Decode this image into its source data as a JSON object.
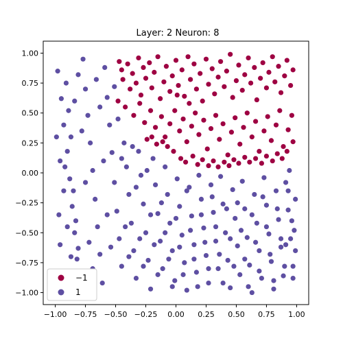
{
  "chart_data": {
    "type": "scatter",
    "title": "Layer: 2 Neuron: 8",
    "xlabel": "",
    "ylabel": "",
    "xlim": [
      -1.1,
      1.1
    ],
    "ylim": [
      -1.1,
      1.1
    ],
    "xticks": [
      "-1.00",
      "-0.75",
      "-0.50",
      "-0.25",
      "0.00",
      "0.25",
      "0.50",
      "0.75",
      "1.00"
    ],
    "yticks": [
      "-1.00",
      "-0.75",
      "-0.50",
      "-0.25",
      "0.00",
      "0.25",
      "0.50",
      "0.75",
      "1.00"
    ],
    "xtick_values": [
      -1.0,
      -0.75,
      -0.5,
      -0.25,
      0.0,
      0.25,
      0.5,
      0.75,
      1.0
    ],
    "ytick_values": [
      -1.0,
      -0.75,
      -0.5,
      -0.25,
      0.0,
      0.25,
      0.5,
      0.75,
      1.0
    ],
    "grid": false,
    "legend_position": "lower-left",
    "series": [
      {
        "name": "−1",
        "color": "#9e0142",
        "points": [
          [
            -0.47,
            0.93
          ],
          [
            -0.45,
            0.86
          ],
          [
            -0.44,
            0.78
          ],
          [
            -0.4,
            0.91
          ],
          [
            -0.38,
            0.7
          ],
          [
            -0.36,
            0.83
          ],
          [
            -0.33,
            0.75
          ],
          [
            -0.31,
            0.96
          ],
          [
            -0.29,
            0.65
          ],
          [
            -0.27,
            0.88
          ],
          [
            -0.25,
            0.79
          ],
          [
            -0.22,
            0.92
          ],
          [
            -0.2,
            0.71
          ],
          [
            -0.18,
            0.84
          ],
          [
            -0.15,
            0.97
          ],
          [
            -0.13,
            0.62
          ],
          [
            -0.1,
            0.76
          ],
          [
            -0.08,
            0.89
          ],
          [
            -0.05,
            0.68
          ],
          [
            -0.03,
            0.81
          ],
          [
            0.0,
            0.94
          ],
          [
            0.02,
            0.73
          ],
          [
            0.05,
            0.86
          ],
          [
            0.07,
            0.64
          ],
          [
            0.1,
            0.97
          ],
          [
            0.12,
            0.78
          ],
          [
            0.15,
            0.91
          ],
          [
            0.17,
            0.7
          ],
          [
            0.2,
            0.83
          ],
          [
            0.22,
            0.6
          ],
          [
            0.25,
            0.95
          ],
          [
            0.27,
            0.74
          ],
          [
            0.3,
            0.87
          ],
          [
            0.32,
            0.66
          ],
          [
            0.35,
            0.8
          ],
          [
            0.37,
            0.93
          ],
          [
            0.4,
            0.72
          ],
          [
            0.42,
            0.85
          ],
          [
            0.45,
            0.99
          ],
          [
            0.47,
            0.63
          ],
          [
            0.5,
            0.77
          ],
          [
            0.52,
            0.9
          ],
          [
            0.55,
            0.69
          ],
          [
            0.57,
            0.82
          ],
          [
            0.6,
            0.96
          ],
          [
            0.62,
            0.75
          ],
          [
            0.65,
            0.88
          ],
          [
            0.67,
            0.61
          ],
          [
            0.7,
            0.79
          ],
          [
            0.72,
            0.92
          ],
          [
            0.75,
            0.71
          ],
          [
            0.77,
            0.84
          ],
          [
            0.8,
            0.97
          ],
          [
            0.82,
            0.76
          ],
          [
            0.85,
            0.89
          ],
          [
            0.87,
            0.67
          ],
          [
            0.9,
            0.81
          ],
          [
            0.92,
            0.94
          ],
          [
            0.95,
            0.73
          ],
          [
            0.97,
            0.86
          ],
          [
            -0.48,
            0.6
          ],
          [
            -0.42,
            0.55
          ],
          [
            -0.35,
            0.48
          ],
          [
            -0.3,
            0.58
          ],
          [
            -0.26,
            0.42
          ],
          [
            -0.21,
            0.52
          ],
          [
            -0.17,
            0.38
          ],
          [
            -0.12,
            0.47
          ],
          [
            -0.09,
            0.3
          ],
          [
            -0.05,
            0.41
          ],
          [
            -0.01,
            0.52
          ],
          [
            0.03,
            0.35
          ],
          [
            0.06,
            0.45
          ],
          [
            0.09,
            0.26
          ],
          [
            0.13,
            0.39
          ],
          [
            0.16,
            0.5
          ],
          [
            0.19,
            0.32
          ],
          [
            0.23,
            0.44
          ],
          [
            0.26,
            0.2
          ],
          [
            0.29,
            0.37
          ],
          [
            0.33,
            0.48
          ],
          [
            0.36,
            0.28
          ],
          [
            0.39,
            0.41
          ],
          [
            0.43,
            0.15
          ],
          [
            0.46,
            0.34
          ],
          [
            0.49,
            0.46
          ],
          [
            0.53,
            0.24
          ],
          [
            0.56,
            0.38
          ],
          [
            0.59,
            0.5
          ],
          [
            0.63,
            0.3
          ],
          [
            0.66,
            0.43
          ],
          [
            0.69,
            0.18
          ],
          [
            0.73,
            0.35
          ],
          [
            0.76,
            0.47
          ],
          [
            0.79,
            0.27
          ],
          [
            0.83,
            0.4
          ],
          [
            0.86,
            0.52
          ],
          [
            0.89,
            0.22
          ],
          [
            0.93,
            0.36
          ],
          [
            0.96,
            0.48
          ],
          [
            -0.02,
            0.18
          ],
          [
            0.04,
            0.12
          ],
          [
            0.08,
            0.09
          ],
          [
            0.14,
            0.14
          ],
          [
            0.18,
            0.07
          ],
          [
            0.22,
            0.11
          ],
          [
            0.27,
            0.06
          ],
          [
            0.31,
            0.1
          ],
          [
            0.35,
            0.05
          ],
          [
            0.4,
            0.09
          ],
          [
            0.44,
            0.06
          ],
          [
            0.48,
            0.11
          ],
          [
            0.52,
            0.08
          ],
          [
            0.57,
            0.13
          ],
          [
            0.61,
            0.09
          ],
          [
            0.66,
            0.12
          ],
          [
            0.71,
            0.08
          ],
          [
            0.75,
            0.14
          ],
          [
            0.8,
            0.1
          ],
          [
            0.84,
            0.16
          ],
          [
            0.88,
            0.12
          ],
          [
            0.92,
            0.18
          ],
          [
            0.97,
            0.26
          ],
          [
            -0.07,
            0.22
          ],
          [
            -0.11,
            0.26
          ],
          [
            -0.16,
            0.24
          ],
          [
            -0.2,
            0.3
          ],
          [
            -0.24,
            0.28
          ],
          [
            0.01,
            0.65
          ],
          [
            0.11,
            0.58
          ]
        ]
      },
      {
        "name": "1",
        "color": "#5e4fa2",
        "points": [
          [
            -0.98,
            0.85
          ],
          [
            -0.95,
            0.62
          ],
          [
            -0.93,
            0.4
          ],
          [
            -0.9,
            0.18
          ],
          [
            -0.88,
            -0.05
          ],
          [
            -0.86,
            -0.28
          ],
          [
            -0.84,
            -0.5
          ],
          [
            -0.82,
            -0.72
          ],
          [
            -0.8,
            -0.95
          ],
          [
            -0.97,
            -0.35
          ],
          [
            -0.96,
            -0.6
          ],
          [
            -0.94,
            -0.85
          ],
          [
            -0.92,
            0.05
          ],
          [
            -0.91,
            0.75
          ],
          [
            -0.89,
            0.52
          ],
          [
            -0.87,
            0.3
          ],
          [
            -0.85,
            -0.15
          ],
          [
            -0.83,
            -0.4
          ],
          [
            -0.81,
            -0.63
          ],
          [
            -0.79,
            -0.88
          ],
          [
            -0.77,
            0.95
          ],
          [
            -0.75,
            0.7
          ],
          [
            -0.73,
            0.48
          ],
          [
            -0.71,
            0.25
          ],
          [
            -0.69,
            0.02
          ],
          [
            -0.67,
            -0.22
          ],
          [
            -0.65,
            -0.45
          ],
          [
            -0.63,
            -0.68
          ],
          [
            -0.61,
            -0.92
          ],
          [
            -0.59,
            0.88
          ],
          [
            -0.57,
            0.63
          ],
          [
            -0.55,
            0.4
          ],
          [
            -0.53,
            0.17
          ],
          [
            -0.51,
            -0.08
          ],
          [
            -0.49,
            -0.32
          ],
          [
            -0.47,
            -0.55
          ],
          [
            -0.45,
            -0.78
          ],
          [
            -0.43,
            0.25
          ],
          [
            -0.41,
            0.05
          ],
          [
            -0.39,
            -0.18
          ],
          [
            -0.37,
            -0.42
          ],
          [
            -0.35,
            -0.65
          ],
          [
            -0.33,
            -0.88
          ],
          [
            -0.31,
            0.18
          ],
          [
            -0.29,
            -0.02
          ],
          [
            -0.27,
            -0.26
          ],
          [
            -0.25,
            -0.5
          ],
          [
            -0.23,
            -0.73
          ],
          [
            -0.21,
            -0.97
          ],
          [
            -0.19,
            0.12
          ],
          [
            -0.17,
            -0.1
          ],
          [
            -0.15,
            -0.34
          ],
          [
            -0.13,
            -0.57
          ],
          [
            -0.11,
            -0.8
          ],
          [
            -0.09,
            0.05
          ],
          [
            -0.07,
            -0.18
          ],
          [
            -0.05,
            -0.42
          ],
          [
            -0.03,
            -0.65
          ],
          [
            -0.01,
            -0.9
          ],
          [
            0.01,
            -0.05
          ],
          [
            0.03,
            -0.28
          ],
          [
            0.05,
            -0.52
          ],
          [
            0.07,
            -0.75
          ],
          [
            0.09,
            -0.98
          ],
          [
            0.11,
            -0.12
          ],
          [
            0.13,
            -0.36
          ],
          [
            0.15,
            -0.6
          ],
          [
            0.17,
            -0.83
          ],
          [
            0.19,
            -0.02
          ],
          [
            0.21,
            -0.22
          ],
          [
            0.23,
            -0.46
          ],
          [
            0.25,
            -0.69
          ],
          [
            0.27,
            -0.92
          ],
          [
            0.29,
            -0.1
          ],
          [
            0.31,
            -0.33
          ],
          [
            0.33,
            -0.57
          ],
          [
            0.35,
            -0.8
          ],
          [
            0.37,
            -0.03
          ],
          [
            0.39,
            -0.26
          ],
          [
            0.41,
            -0.5
          ],
          [
            0.43,
            -0.73
          ],
          [
            0.45,
            -0.96
          ],
          [
            0.47,
            -0.14
          ],
          [
            0.49,
            -0.38
          ],
          [
            0.51,
            -0.61
          ],
          [
            0.53,
            -0.85
          ],
          [
            0.55,
            -0.07
          ],
          [
            0.57,
            -0.3
          ],
          [
            0.59,
            -0.54
          ],
          [
            0.61,
            -0.77
          ],
          [
            0.63,
            -1.0
          ],
          [
            0.65,
            -0.18
          ],
          [
            0.67,
            -0.42
          ],
          [
            0.69,
            -0.65
          ],
          [
            0.71,
            -0.88
          ],
          [
            0.73,
            -0.04
          ],
          [
            0.75,
            -0.27
          ],
          [
            0.77,
            -0.51
          ],
          [
            0.79,
            -0.74
          ],
          [
            0.81,
            -0.97
          ],
          [
            0.83,
            -0.15
          ],
          [
            0.85,
            -0.39
          ],
          [
            0.87,
            -0.62
          ],
          [
            0.89,
            -0.86
          ],
          [
            0.91,
            -0.08
          ],
          [
            0.93,
            -0.31
          ],
          [
            0.95,
            -0.55
          ],
          [
            0.97,
            -0.78
          ],
          [
            0.99,
            -0.22
          ],
          [
            0.98,
            -0.48
          ],
          [
            -0.99,
            0.3
          ],
          [
            -0.96,
            0.1
          ],
          [
            -0.93,
            -0.15
          ],
          [
            -0.9,
            -0.45
          ],
          [
            -0.87,
            -0.7
          ],
          [
            -0.84,
            0.6
          ],
          [
            -0.81,
            0.82
          ],
          [
            -0.78,
            0.35
          ],
          [
            -0.75,
            -0.08
          ],
          [
            -0.72,
            -0.58
          ],
          [
            -0.69,
            -0.8
          ],
          [
            -0.66,
            0.78
          ],
          [
            -0.63,
            0.55
          ],
          [
            -0.6,
            0.1
          ],
          [
            -0.57,
            -0.35
          ],
          [
            -0.54,
            -0.62
          ],
          [
            -0.51,
            0.72
          ],
          [
            -0.48,
            0.45
          ],
          [
            -0.45,
            0.12
          ],
          [
            -0.42,
            -0.45
          ],
          [
            -0.39,
            -0.7
          ],
          [
            -0.36,
            0.22
          ],
          [
            -0.33,
            -0.12
          ],
          [
            -0.3,
            -0.55
          ],
          [
            -0.27,
            -0.78
          ],
          [
            -0.24,
            0.02
          ],
          [
            -0.21,
            -0.35
          ],
          [
            -0.18,
            -0.6
          ],
          [
            -0.15,
            -0.85
          ],
          [
            -0.12,
            -0.25
          ],
          [
            -0.09,
            -0.5
          ],
          [
            -0.06,
            -0.72
          ],
          [
            -0.03,
            -0.95
          ],
          [
            0.0,
            -0.38
          ],
          [
            0.03,
            -0.62
          ],
          [
            0.06,
            -0.85
          ],
          [
            0.09,
            -0.15
          ],
          [
            0.12,
            -0.48
          ],
          [
            0.15,
            -0.72
          ],
          [
            0.18,
            -0.95
          ],
          [
            0.21,
            -0.35
          ],
          [
            0.24,
            -0.58
          ],
          [
            0.27,
            -0.8
          ],
          [
            0.3,
            -0.2
          ],
          [
            0.33,
            -0.45
          ],
          [
            0.36,
            -0.68
          ],
          [
            0.39,
            -0.92
          ],
          [
            0.42,
            -0.3
          ],
          [
            0.45,
            -0.55
          ],
          [
            0.48,
            -0.78
          ],
          [
            0.51,
            -0.25
          ],
          [
            0.54,
            -0.48
          ],
          [
            0.57,
            -0.72
          ],
          [
            0.6,
            -0.95
          ],
          [
            0.63,
            -0.35
          ],
          [
            0.66,
            -0.58
          ],
          [
            0.69,
            -0.82
          ],
          [
            0.72,
            -0.2
          ],
          [
            0.75,
            -0.45
          ],
          [
            0.78,
            -0.68
          ],
          [
            0.81,
            -0.9
          ],
          [
            0.84,
            -0.3
          ],
          [
            0.87,
            -0.55
          ],
          [
            0.9,
            -0.78
          ],
          [
            0.93,
            -0.15
          ],
          [
            0.96,
            -0.4
          ],
          [
            0.99,
            -0.65
          ],
          [
            0.97,
            -0.88
          ],
          [
            0.94,
            0.02
          ],
          [
            0.91,
            -0.6
          ]
        ]
      }
    ]
  }
}
